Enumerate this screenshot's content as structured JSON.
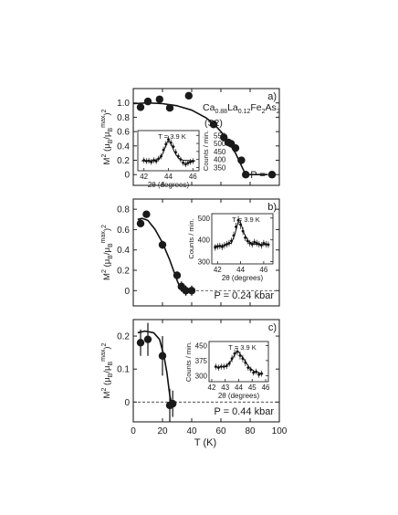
{
  "figure": {
    "xlabel": "T (K)",
    "xticks": [
      "0",
      "20",
      "40",
      "60",
      "80",
      "100"
    ],
    "xlim": [
      0,
      100
    ]
  },
  "chart_data": [
    {
      "type": "scatter",
      "panel_label": "a)",
      "pressure_label": "P = 0",
      "compound": {
        "base": [
          "Ca",
          "La",
          "Fe",
          "As"
        ],
        "subs": [
          "0.88",
          "0.12",
          "2",
          "2"
        ]
      },
      "sample_label": "(S2)",
      "ylabel_main": "M",
      "ylabel_sup": "2",
      "ylabel_rest": " (μ",
      "ylabel_sub": "B",
      "ylabel_mid": "/μ",
      "ylabel_sub2": "B",
      "ylabel_sup2": "max",
      "ylabel_end": ")",
      "ylabel_sup3": "2",
      "ylim": [
        -0.15,
        1.2
      ],
      "yticks": [
        0,
        0.2,
        0.4,
        0.6,
        0.8,
        1.0
      ],
      "ytick_labels": [
        "0",
        "0.2",
        "0.4",
        "0.6",
        "0.8",
        "1.0"
      ],
      "points": [
        {
          "x": 5,
          "y": 0.94,
          "err": 0
        },
        {
          "x": 10,
          "y": 1.02,
          "err": 0
        },
        {
          "x": 18,
          "y": 1.05,
          "err": 0
        },
        {
          "x": 25,
          "y": 0.93,
          "err": 0
        },
        {
          "x": 38,
          "y": 1.1,
          "err": 0
        },
        {
          "x": 55,
          "y": 0.7,
          "err": 0
        },
        {
          "x": 62,
          "y": 0.52,
          "err": 0
        },
        {
          "x": 65,
          "y": 0.45,
          "err": 0
        },
        {
          "x": 67,
          "y": 0.43,
          "err": 0
        },
        {
          "x": 70,
          "y": 0.37,
          "err": 0
        },
        {
          "x": 74,
          "y": 0.2,
          "err": 0
        },
        {
          "x": 77,
          "y": 0.0,
          "err": 0
        },
        {
          "x": 95,
          "y": 0.0,
          "err": 0
        }
      ],
      "fit": [
        [
          0,
          0.99
        ],
        [
          10,
          1.0
        ],
        [
          20,
          0.99
        ],
        [
          30,
          0.96
        ],
        [
          40,
          0.9
        ],
        [
          50,
          0.79
        ],
        [
          55,
          0.71
        ],
        [
          60,
          0.6
        ],
        [
          65,
          0.46
        ],
        [
          70,
          0.3
        ],
        [
          73,
          0.17
        ],
        [
          76,
          0.04
        ],
        [
          78,
          0.0
        ],
        [
          92,
          0.0
        ]
      ],
      "dashed": [
        [
          78,
          0
        ],
        [
          100,
          0
        ]
      ],
      "inset": {
        "temp_label": "T = 3.9 K",
        "xlabel": "2θ (degrees)",
        "ylabel": "Counts / min.",
        "xlim": [
          41.5,
          46.5
        ],
        "ylim": [
          330,
          580
        ],
        "xticks": [
          42,
          44,
          46
        ],
        "yticks": [
          350,
          400,
          450,
          500,
          550
        ],
        "points": [
          [
            42.0,
            395,
            18
          ],
          [
            42.2,
            390,
            18
          ],
          [
            42.4,
            392,
            18
          ],
          [
            42.6,
            385,
            18
          ],
          [
            42.8,
            395,
            18
          ],
          [
            43.0,
            390,
            18
          ],
          [
            43.2,
            405,
            18
          ],
          [
            43.4,
            420,
            18
          ],
          [
            43.6,
            460,
            20
          ],
          [
            43.8,
            495,
            20
          ],
          [
            44.0,
            525,
            22
          ],
          [
            44.2,
            505,
            20
          ],
          [
            44.4,
            480,
            20
          ],
          [
            44.6,
            445,
            20
          ],
          [
            44.8,
            420,
            18
          ],
          [
            45.0,
            400,
            18
          ],
          [
            45.2,
            380,
            18
          ],
          [
            45.4,
            370,
            18
          ],
          [
            45.6,
            378,
            18
          ],
          [
            45.8,
            385,
            18
          ],
          [
            46.0,
            390,
            18
          ]
        ],
        "fit": [
          [
            41.8,
            392
          ],
          [
            42.6,
            393
          ],
          [
            43.2,
            400
          ],
          [
            43.5,
            430
          ],
          [
            43.8,
            490
          ],
          [
            44.0,
            522
          ],
          [
            44.2,
            500
          ],
          [
            44.5,
            445
          ],
          [
            44.8,
            410
          ],
          [
            45.2,
            395
          ],
          [
            46.2,
            392
          ]
        ]
      }
    },
    {
      "type": "scatter",
      "panel_label": "b)",
      "pressure_label": "P = 0.24 kbar",
      "ylabel_main": "M",
      "ylabel_sup": "2",
      "ylabel_rest": " (μ",
      "ylabel_sub": "B",
      "ylabel_mid": "/μ",
      "ylabel_sub2": "B",
      "ylabel_sup2": "max",
      "ylabel_end": ")",
      "ylabel_sup3": "2",
      "ylim": [
        -0.15,
        0.9
      ],
      "yticks": [
        0,
        0.2,
        0.4,
        0.6,
        0.8
      ],
      "ytick_labels": [
        "0",
        "0.2",
        "0.4",
        "0.6",
        "0.8"
      ],
      "points": [
        {
          "x": 5,
          "y": 0.66,
          "err": 0.03
        },
        {
          "x": 9,
          "y": 0.75,
          "err": 0.03
        },
        {
          "x": 20,
          "y": 0.45,
          "err": 0.04
        },
        {
          "x": 30,
          "y": 0.15,
          "err": 0.04
        },
        {
          "x": 33,
          "y": 0.04,
          "err": 0.05
        },
        {
          "x": 36,
          "y": 0.0,
          "err": 0.05
        },
        {
          "x": 40,
          "y": 0.0,
          "err": 0.05
        }
      ],
      "fit": [
        [
          3,
          0.7
        ],
        [
          6,
          0.71
        ],
        [
          10,
          0.69
        ],
        [
          15,
          0.6
        ],
        [
          20,
          0.47
        ],
        [
          25,
          0.3
        ],
        [
          30,
          0.1
        ],
        [
          33,
          0.0
        ],
        [
          40,
          0.0
        ]
      ],
      "dashed": [
        [
          40,
          0
        ],
        [
          100,
          0
        ]
      ],
      "inset": {
        "temp_label": "T = 3.9 K",
        "xlabel": "2θ (degrees)",
        "ylabel": "Counts / min.",
        "xlim": [
          41.5,
          46.8
        ],
        "ylim": [
          290,
          520
        ],
        "xticks": [
          42,
          44,
          46
        ],
        "yticks": [
          300,
          400,
          500
        ],
        "points": [
          [
            41.8,
            365,
            15
          ],
          [
            42.0,
            370,
            15
          ],
          [
            42.2,
            372,
            15
          ],
          [
            42.4,
            368,
            15
          ],
          [
            42.6,
            375,
            15
          ],
          [
            42.8,
            380,
            15
          ],
          [
            43.0,
            385,
            15
          ],
          [
            43.2,
            395,
            15
          ],
          [
            43.4,
            420,
            18
          ],
          [
            43.6,
            460,
            18
          ],
          [
            43.8,
            490,
            20
          ],
          [
            44.0,
            470,
            20
          ],
          [
            44.2,
            440,
            18
          ],
          [
            44.4,
            410,
            15
          ],
          [
            44.6,
            395,
            15
          ],
          [
            44.8,
            385,
            15
          ],
          [
            45.0,
            380,
            15
          ],
          [
            45.2,
            390,
            15
          ],
          [
            45.4,
            385,
            15
          ],
          [
            45.6,
            380,
            15
          ],
          [
            45.8,
            375,
            15
          ],
          [
            46.0,
            385,
            15
          ],
          [
            46.2,
            380,
            15
          ],
          [
            46.4,
            378,
            15
          ]
        ],
        "fit": [
          [
            41.7,
            372
          ],
          [
            42.6,
            374
          ],
          [
            43.2,
            385
          ],
          [
            43.5,
            425
          ],
          [
            43.8,
            485
          ],
          [
            44.0,
            478
          ],
          [
            44.3,
            430
          ],
          [
            44.7,
            392
          ],
          [
            45.2,
            380
          ],
          [
            46.5,
            378
          ]
        ]
      }
    },
    {
      "type": "scatter",
      "panel_label": "c)",
      "pressure_label": "P = 0.44 kbar",
      "ylabel_main": "M",
      "ylabel_sup": "2",
      "ylabel_rest": " (μ",
      "ylabel_sub": "B",
      "ylabel_mid": "/μ",
      "ylabel_sub2": "B",
      "ylabel_sup2": "max",
      "ylabel_end": ")",
      "ylabel_sup3": "2",
      "ylim": [
        -0.06,
        0.25
      ],
      "yticks": [
        0,
        0.1,
        0.2
      ],
      "ytick_labels": [
        "0",
        "0.1",
        "0.2"
      ],
      "points": [
        {
          "x": 5,
          "y": 0.18,
          "err": 0.04
        },
        {
          "x": 10,
          "y": 0.19,
          "err": 0.05
        },
        {
          "x": 20,
          "y": 0.14,
          "err": 0.06
        },
        {
          "x": 25,
          "y": -0.01,
          "err": 0.05
        },
        {
          "x": 27,
          "y": -0.005,
          "err": 0.04
        }
      ],
      "fit": [
        [
          3,
          0.21
        ],
        [
          8,
          0.215
        ],
        [
          14,
          0.21
        ],
        [
          18,
          0.19
        ],
        [
          21,
          0.14
        ],
        [
          23,
          0.09
        ],
        [
          25,
          0.02
        ],
        [
          26,
          0.0
        ]
      ],
      "dashed": [
        [
          0,
          0
        ],
        [
          100,
          0
        ]
      ],
      "inset": {
        "temp_label": "T = 3.9 K",
        "xlabel": "2θ (degrees)",
        "ylabel": "Counts / min.",
        "xlim": [
          41.8,
          46.2
        ],
        "ylim": [
          270,
          470
        ],
        "xticks": [
          42,
          43,
          44,
          45,
          46
        ],
        "yticks": [
          300,
          375,
          450
        ],
        "points": [
          [
            42.3,
            345,
            15
          ],
          [
            42.5,
            340,
            15
          ],
          [
            42.7,
            345,
            15
          ],
          [
            42.9,
            345,
            15
          ],
          [
            43.1,
            348,
            15
          ],
          [
            43.3,
            360,
            15
          ],
          [
            43.5,
            385,
            18
          ],
          [
            43.7,
            410,
            20
          ],
          [
            43.9,
            420,
            20
          ],
          [
            44.1,
            400,
            20
          ],
          [
            44.3,
            385,
            18
          ],
          [
            44.5,
            365,
            18
          ],
          [
            44.7,
            340,
            15
          ],
          [
            44.9,
            330,
            15
          ],
          [
            45.1,
            315,
            15
          ],
          [
            45.3,
            320,
            15
          ],
          [
            45.5,
            305,
            15
          ],
          [
            45.7,
            310,
            15
          ]
        ],
        "fit": [
          [
            42.2,
            343
          ],
          [
            43.0,
            345
          ],
          [
            43.4,
            370
          ],
          [
            43.8,
            415
          ],
          [
            44.0,
            418
          ],
          [
            44.4,
            380
          ],
          [
            44.8,
            340
          ],
          [
            45.2,
            318
          ],
          [
            45.8,
            310
          ]
        ]
      }
    }
  ]
}
